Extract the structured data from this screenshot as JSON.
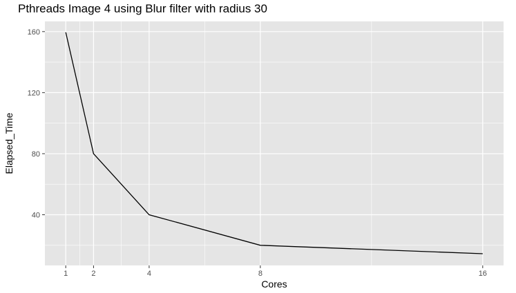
{
  "chart_data": {
    "type": "line",
    "title": "Pthreads Image 4 using Blur filter with radius 30",
    "xlabel": "Cores",
    "ylabel": "Elapsed_Time",
    "x": [
      1,
      2,
      4,
      8,
      16
    ],
    "series": [
      {
        "values": [
          159.5,
          80.0,
          40.0,
          20.0,
          14.5
        ]
      }
    ],
    "xticks": [
      1,
      2,
      4,
      8,
      16
    ],
    "yticks": [
      40,
      80,
      120,
      160
    ],
    "xlim": [
      0.25,
      16.75
    ],
    "ylim": [
      6.8,
      166.7
    ],
    "grid": true,
    "colors": {
      "panel": "#E5E5E5",
      "grid": "#FFFFFF",
      "line": "#000000"
    }
  }
}
